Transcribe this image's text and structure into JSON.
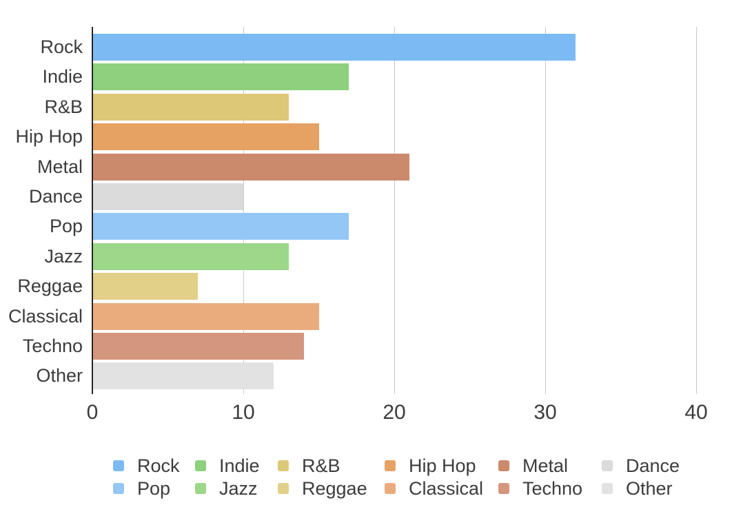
{
  "chart_data": {
    "type": "bar",
    "orientation": "horizontal",
    "title": "",
    "xlabel": "",
    "ylabel": "",
    "categories": [
      "Rock",
      "Indie",
      "R&B",
      "Hip Hop",
      "Metal",
      "Dance",
      "Pop",
      "Jazz",
      "Reggae",
      "Classical",
      "Techno",
      "Other"
    ],
    "values": [
      32,
      17,
      13,
      15,
      21,
      10,
      17,
      13,
      7,
      15,
      14,
      12
    ],
    "colors": [
      "#7cbaf3",
      "#8ed07d",
      "#ddc878",
      "#e6a263",
      "#cc8a6c",
      "#dbdbdb",
      "#94c6f6",
      "#9dd78a",
      "#e2cf88",
      "#eaac7c",
      "#d5967e",
      "#e2e2e2"
    ],
    "xlim": [
      0,
      40
    ],
    "xticks": [
      0,
      10,
      20,
      30,
      40
    ],
    "grid": true,
    "legend": {
      "position": "bottom",
      "rows": 2,
      "items_per_row": 6,
      "entries": [
        "Rock",
        "Indie",
        "R&B",
        "Hip Hop",
        "Metal",
        "Dance",
        "Pop",
        "Jazz",
        "Reggae",
        "Classical",
        "Techno",
        "Other"
      ]
    },
    "axis_color": "#262626",
    "gridline_color": "#c9c9c9",
    "text_color": "#3c3c3c"
  }
}
